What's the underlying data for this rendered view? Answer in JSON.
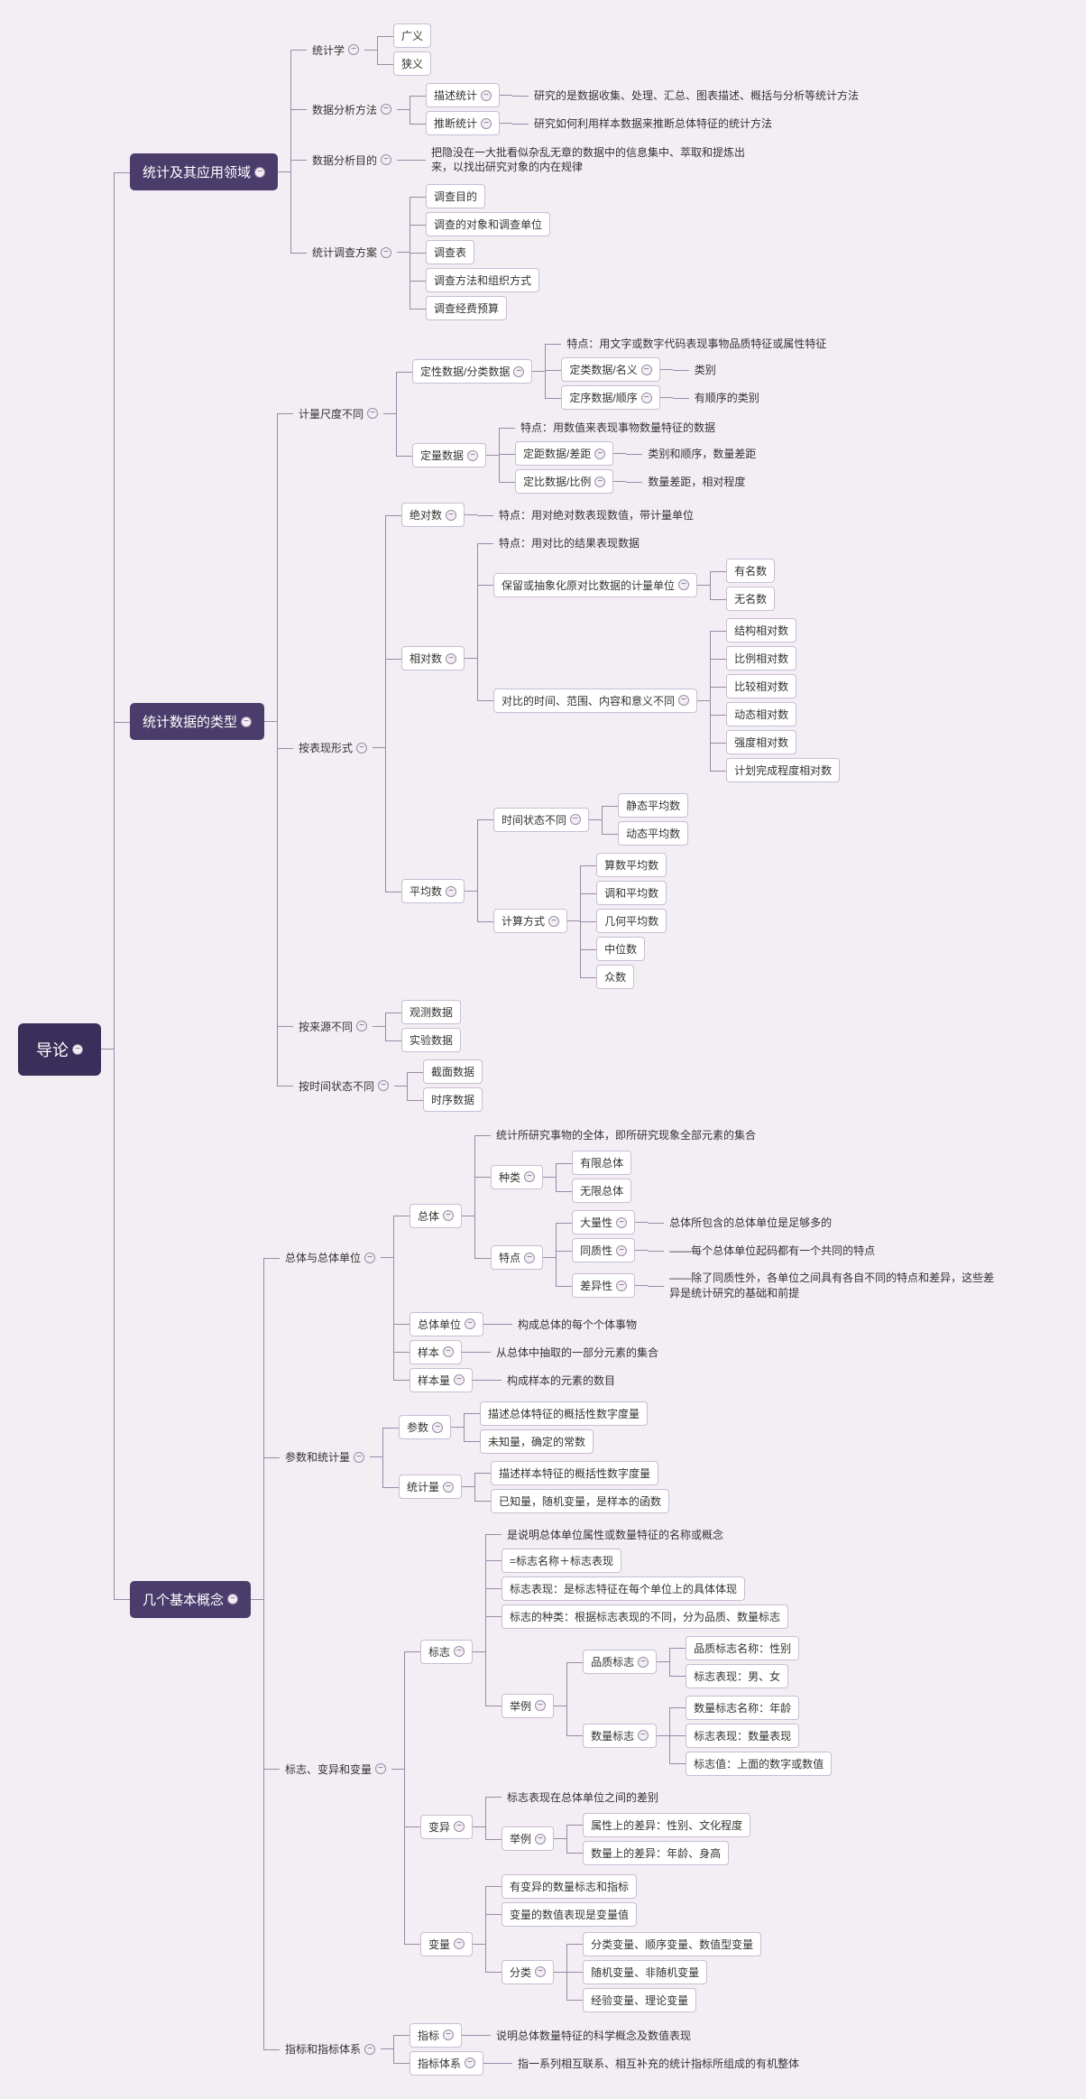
{
  "colors": {
    "bg": "#f3eef4",
    "root_bg": "#3a2e5a",
    "major_bg": "#4a3d6b",
    "line": "#9a8aa8",
    "box_border": "#c8bcd4"
  },
  "fontsizes": {
    "root": 18,
    "major": 15,
    "normal": 12
  },
  "tree": {
    "label": "导论",
    "style": "root",
    "children": [
      {
        "label": "统计及其应用领域",
        "style": "major",
        "children": [
          {
            "label": "统计学",
            "style": "plain",
            "children": [
              {
                "label": "广义",
                "style": "boxed"
              },
              {
                "label": "狭义",
                "style": "boxed"
              }
            ]
          },
          {
            "label": "数据分析方法",
            "style": "plain",
            "children": [
              {
                "label": "描述统计",
                "style": "boxed",
                "children": [
                  {
                    "label": "研究的是数据收集、处理、汇总、图表描述、概括与分析等统计方法",
                    "style": "plain"
                  }
                ]
              },
              {
                "label": "推断统计",
                "style": "boxed",
                "children": [
                  {
                    "label": "研究如何利用样本数据来推断总体特征的统计方法",
                    "style": "plain"
                  }
                ]
              }
            ]
          },
          {
            "label": "数据分析目的",
            "style": "plain",
            "children": [
              {
                "label": "把隐没在一大批看似杂乱无章的数据中的信息集中、萃取和提炼出来，以找出研究对象的内在规律",
                "style": "plain",
                "wrap": true
              }
            ]
          },
          {
            "label": "统计调查方案",
            "style": "plain",
            "children": [
              {
                "label": "调查目的",
                "style": "boxed"
              },
              {
                "label": "调查的对象和调查单位",
                "style": "boxed"
              },
              {
                "label": "调查表",
                "style": "boxed"
              },
              {
                "label": "调查方法和组织方式",
                "style": "boxed"
              },
              {
                "label": "调查经费预算",
                "style": "boxed"
              }
            ]
          }
        ]
      },
      {
        "label": "统计数据的类型",
        "style": "major",
        "children": [
          {
            "label": "计量尺度不同",
            "style": "plain",
            "children": [
              {
                "label": "定性数据/分类数据",
                "style": "boxed",
                "children": [
                  {
                    "label": "特点：用文字或数字代码表现事物品质特征或属性特征",
                    "style": "plain"
                  },
                  {
                    "label": "定类数据/名义",
                    "style": "boxed",
                    "children": [
                      {
                        "label": "类别",
                        "style": "plain"
                      }
                    ]
                  },
                  {
                    "label": "定序数据/顺序",
                    "style": "boxed",
                    "children": [
                      {
                        "label": "有顺序的类别",
                        "style": "plain"
                      }
                    ]
                  }
                ]
              },
              {
                "label": "定量数据",
                "style": "boxed",
                "children": [
                  {
                    "label": "特点：用数值来表现事物数量特征的数据",
                    "style": "plain"
                  },
                  {
                    "label": "定距数据/差距",
                    "style": "boxed",
                    "children": [
                      {
                        "label": "类别和顺序，数量差距",
                        "style": "plain"
                      }
                    ]
                  },
                  {
                    "label": "定比数据/比例",
                    "style": "boxed",
                    "children": [
                      {
                        "label": "数量差距，相对程度",
                        "style": "plain"
                      }
                    ]
                  }
                ]
              }
            ]
          },
          {
            "label": "按表现形式",
            "style": "plain",
            "children": [
              {
                "label": "绝对数",
                "style": "boxed",
                "children": [
                  {
                    "label": "特点：用对绝对数表现数值，带计量单位",
                    "style": "plain"
                  }
                ]
              },
              {
                "label": "相对数",
                "style": "boxed",
                "children": [
                  {
                    "label": "特点：用对比的结果表现数据",
                    "style": "plain"
                  },
                  {
                    "label": "保留或抽象化原对比数据的计量单位",
                    "style": "boxed",
                    "children": [
                      {
                        "label": "有名数",
                        "style": "boxed"
                      },
                      {
                        "label": "无名数",
                        "style": "boxed"
                      }
                    ]
                  },
                  {
                    "label": "对比的时间、范围、内容和意义不同",
                    "style": "boxed",
                    "children": [
                      {
                        "label": "结构相对数",
                        "style": "boxed"
                      },
                      {
                        "label": "比例相对数",
                        "style": "boxed"
                      },
                      {
                        "label": "比较相对数",
                        "style": "boxed"
                      },
                      {
                        "label": "动态相对数",
                        "style": "boxed"
                      },
                      {
                        "label": "强度相对数",
                        "style": "boxed"
                      },
                      {
                        "label": "计划完成程度相对数",
                        "style": "boxed"
                      }
                    ]
                  }
                ]
              },
              {
                "label": "平均数",
                "style": "boxed",
                "children": [
                  {
                    "label": "时间状态不同",
                    "style": "boxed",
                    "children": [
                      {
                        "label": "静态平均数",
                        "style": "boxed"
                      },
                      {
                        "label": "动态平均数",
                        "style": "boxed"
                      }
                    ]
                  },
                  {
                    "label": "计算方式",
                    "style": "boxed",
                    "children": [
                      {
                        "label": "算数平均数",
                        "style": "boxed"
                      },
                      {
                        "label": "调和平均数",
                        "style": "boxed"
                      },
                      {
                        "label": "几何平均数",
                        "style": "boxed"
                      },
                      {
                        "label": "中位数",
                        "style": "boxed"
                      },
                      {
                        "label": "众数",
                        "style": "boxed"
                      }
                    ]
                  }
                ]
              }
            ]
          },
          {
            "label": "按来源不同",
            "style": "plain",
            "children": [
              {
                "label": "观测数据",
                "style": "boxed"
              },
              {
                "label": "实验数据",
                "style": "boxed"
              }
            ]
          },
          {
            "label": "按时间状态不同",
            "style": "plain",
            "children": [
              {
                "label": "截面数据",
                "style": "boxed"
              },
              {
                "label": "时序数据",
                "style": "boxed"
              }
            ]
          }
        ]
      },
      {
        "label": "几个基本概念",
        "style": "major",
        "children": [
          {
            "label": "总体与总体单位",
            "style": "plain",
            "children": [
              {
                "label": "总体",
                "style": "boxed",
                "children": [
                  {
                    "label": "统计所研究事物的全体，即所研究现象全部元素的集合",
                    "style": "plain"
                  },
                  {
                    "label": "种类",
                    "style": "boxed",
                    "children": [
                      {
                        "label": "有限总体",
                        "style": "boxed"
                      },
                      {
                        "label": "无限总体",
                        "style": "boxed"
                      }
                    ]
                  },
                  {
                    "label": "特点",
                    "style": "boxed",
                    "children": [
                      {
                        "label": "大量性",
                        "style": "boxed",
                        "children": [
                          {
                            "label": "总体所包含的总体单位是足够多的",
                            "style": "plain"
                          }
                        ]
                      },
                      {
                        "label": "同质性",
                        "style": "boxed",
                        "children": [
                          {
                            "label": "——每个总体单位起码都有一个共同的特点",
                            "style": "plain"
                          }
                        ]
                      },
                      {
                        "label": "差异性",
                        "style": "boxed",
                        "children": [
                          {
                            "label": "——除了同质性外，各单位之间具有各自不同的特点和差异，这些差异是统计研究的基础和前提",
                            "style": "plain",
                            "wrap": true
                          }
                        ]
                      }
                    ]
                  }
                ]
              },
              {
                "label": "总体单位",
                "style": "boxed",
                "children": [
                  {
                    "label": "构成总体的每个个体事物",
                    "style": "plain"
                  }
                ]
              },
              {
                "label": "样本",
                "style": "boxed",
                "children": [
                  {
                    "label": "从总体中抽取的一部分元素的集合",
                    "style": "plain"
                  }
                ]
              },
              {
                "label": "样本量",
                "style": "boxed",
                "children": [
                  {
                    "label": "构成样本的元素的数目",
                    "style": "plain"
                  }
                ]
              }
            ]
          },
          {
            "label": "参数和统计量",
            "style": "plain",
            "children": [
              {
                "label": "参数",
                "style": "boxed",
                "children": [
                  {
                    "label": "描述总体特征的概括性数字度量",
                    "style": "boxed"
                  },
                  {
                    "label": "未知量，确定的常数",
                    "style": "boxed"
                  }
                ]
              },
              {
                "label": "统计量",
                "style": "boxed",
                "children": [
                  {
                    "label": "描述样本特征的概括性数字度量",
                    "style": "boxed"
                  },
                  {
                    "label": "已知量，随机变量，是样本的函数",
                    "style": "boxed"
                  }
                ]
              }
            ]
          },
          {
            "label": "标志、变异和变量",
            "style": "plain",
            "children": [
              {
                "label": "标志",
                "style": "boxed",
                "children": [
                  {
                    "label": "是说明总体单位属性或数量特征的名称或概念",
                    "style": "plain"
                  },
                  {
                    "label": "=标志名称＋标志表现",
                    "style": "boxed"
                  },
                  {
                    "label": "标志表现：是标志特征在每个单位上的具体体现",
                    "style": "boxed"
                  },
                  {
                    "label": "标志的种类：根据标志表现的不同，分为品质、数量标志",
                    "style": "boxed"
                  },
                  {
                    "label": "举例",
                    "style": "boxed",
                    "children": [
                      {
                        "label": "品质标志",
                        "style": "boxed",
                        "children": [
                          {
                            "label": "品质标志名称：性别",
                            "style": "boxed"
                          },
                          {
                            "label": "标志表现：男、女",
                            "style": "boxed"
                          }
                        ]
                      },
                      {
                        "label": "数量标志",
                        "style": "boxed",
                        "children": [
                          {
                            "label": "数量标志名称：年龄",
                            "style": "boxed"
                          },
                          {
                            "label": "标志表现：数量表现",
                            "style": "boxed"
                          },
                          {
                            "label": "标志值：上面的数字或数值",
                            "style": "boxed"
                          }
                        ]
                      }
                    ]
                  }
                ]
              },
              {
                "label": "变异",
                "style": "boxed",
                "children": [
                  {
                    "label": "标志表现在总体单位之间的差别",
                    "style": "plain"
                  },
                  {
                    "label": "举例",
                    "style": "boxed",
                    "children": [
                      {
                        "label": "属性上的差异：性别、文化程度",
                        "style": "boxed"
                      },
                      {
                        "label": "数量上的差异：年龄、身高",
                        "style": "boxed"
                      }
                    ]
                  }
                ]
              },
              {
                "label": "变量",
                "style": "boxed",
                "children": [
                  {
                    "label": "有变异的数量标志和指标",
                    "style": "boxed"
                  },
                  {
                    "label": "变量的数值表现是变量值",
                    "style": "boxed"
                  },
                  {
                    "label": "分类",
                    "style": "boxed",
                    "children": [
                      {
                        "label": "分类变量、顺序变量、数值型变量",
                        "style": "boxed"
                      },
                      {
                        "label": "随机变量、非随机变量",
                        "style": "boxed"
                      },
                      {
                        "label": "经验变量、理论变量",
                        "style": "boxed"
                      }
                    ]
                  }
                ]
              }
            ]
          },
          {
            "label": "指标和指标体系",
            "style": "plain",
            "children": [
              {
                "label": "指标",
                "style": "boxed",
                "children": [
                  {
                    "label": "说明总体数量特征的科学概念及数值表现",
                    "style": "plain"
                  }
                ]
              },
              {
                "label": "指标体系",
                "style": "boxed",
                "children": [
                  {
                    "label": "指一系列相互联系、相互补充的统计指标所组成的有机整体",
                    "style": "plain"
                  }
                ]
              }
            ]
          }
        ]
      }
    ]
  }
}
